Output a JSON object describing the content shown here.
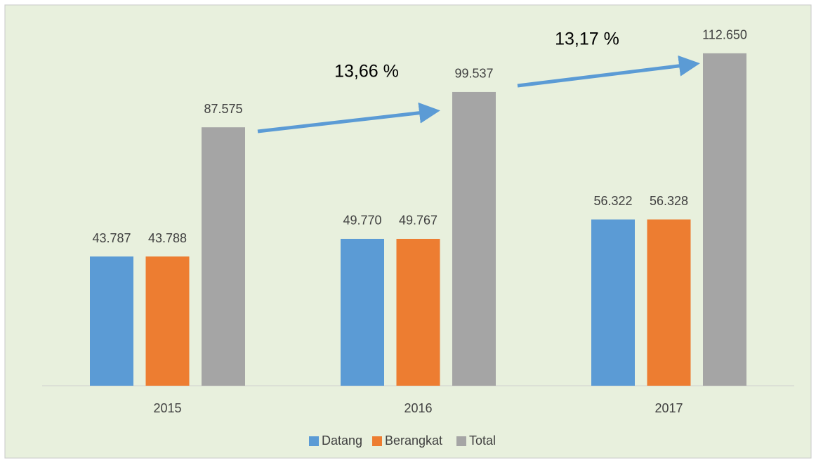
{
  "chart_data": {
    "type": "bar",
    "categories": [
      "2015",
      "2016",
      "2017"
    ],
    "series": [
      {
        "name": "Datang",
        "color": "#5b9bd5",
        "values": [
          43787,
          49770,
          56322
        ],
        "value_labels": [
          "43.787",
          "49.770",
          "56.322"
        ]
      },
      {
        "name": "Berangkat",
        "color": "#ed7d31",
        "values": [
          43788,
          49767,
          56328
        ],
        "value_labels": [
          "43.788",
          "49.767",
          "56.328"
        ]
      },
      {
        "name": "Total",
        "color": "#a5a5a5",
        "values": [
          87575,
          99537,
          112650
        ],
        "value_labels": [
          "87.575",
          "99.537",
          "112.650"
        ]
      }
    ],
    "ylim": [
      0,
      125000
    ],
    "annotations": [
      "13,66 %",
      "13,17 %"
    ],
    "legend": "bottom"
  }
}
